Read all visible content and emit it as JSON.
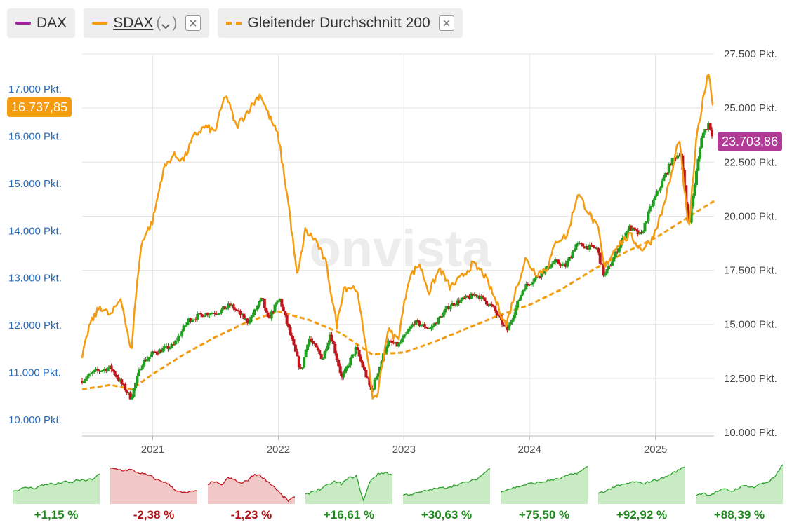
{
  "legend": {
    "dax": {
      "label": "DAX",
      "color": "#a0239c"
    },
    "sdax": {
      "label": "SDAX",
      "paren_open": "(",
      "paren_close": ")",
      "color": "#f39c12"
    },
    "sma": {
      "label": "Gleitender Durchschnitt 200",
      "color": "#f39c12"
    }
  },
  "price_labels": {
    "sdax": "16.737,85",
    "dax": "23.703,86"
  },
  "watermark": "onvista",
  "colors": {
    "up": "#1f9e1f",
    "down": "#c0141c",
    "sdax": "#f39c12",
    "left_axis": "#2a6bb8"
  },
  "chart_data": {
    "type": "line",
    "y_left": {
      "ticks": [
        "10.000 Pkt.",
        "11.000 Pkt.",
        "12.000 Pkt.",
        "13.000 Pkt.",
        "14.000 Pkt.",
        "15.000 Pkt.",
        "16.000 Pkt.",
        "17.000 Pkt."
      ],
      "values": [
        10000,
        11000,
        12000,
        13000,
        14000,
        15000,
        16000,
        17000
      ]
    },
    "y_right": {
      "ticks": [
        "10.000 Pkt.",
        "12.500 Pkt.",
        "15.000 Pkt.",
        "17.500 Pkt.",
        "20.000 Pkt.",
        "22.500 Pkt.",
        "25.000 Pkt.",
        "27.500 Pkt."
      ],
      "values": [
        10000,
        12500,
        15000,
        17500,
        20000,
        22500,
        25000,
        27500
      ]
    },
    "x_ticks": [
      "2021",
      "2022",
      "2023",
      "2024",
      "2025"
    ],
    "x_tick_dates": [
      "2021-01-01",
      "2022-01-01",
      "2023-01-01",
      "2024-01-01",
      "2025-01-01"
    ],
    "x_range": [
      "2020-06-10",
      "2025-06-20"
    ],
    "grid": true,
    "series": [
      {
        "name": "SDAX",
        "axis": "left",
        "style": "line",
        "points": [
          [
            "2020-06-10",
            11300
          ],
          [
            "2020-07-01",
            12000
          ],
          [
            "2020-08-01",
            12400
          ],
          [
            "2020-09-01",
            12200
          ],
          [
            "2020-10-01",
            12600
          ],
          [
            "2020-10-30",
            11400
          ],
          [
            "2020-11-15",
            12800
          ],
          [
            "2020-12-01",
            13800
          ],
          [
            "2021-01-01",
            14200
          ],
          [
            "2021-02-01",
            15300
          ],
          [
            "2021-03-01",
            15600
          ],
          [
            "2021-04-01",
            15500
          ],
          [
            "2021-05-01",
            16000
          ],
          [
            "2021-06-01",
            16200
          ],
          [
            "2021-07-01",
            16100
          ],
          [
            "2021-08-01",
            16900
          ],
          [
            "2021-09-01",
            16200
          ],
          [
            "2021-10-01",
            16500
          ],
          [
            "2021-11-10",
            16900
          ],
          [
            "2021-12-01",
            16500
          ],
          [
            "2022-01-01",
            16000
          ],
          [
            "2022-02-01",
            14500
          ],
          [
            "2022-02-25",
            13000
          ],
          [
            "2022-03-20",
            14000
          ],
          [
            "2022-04-20",
            13800
          ],
          [
            "2022-05-20",
            13300
          ],
          [
            "2022-06-20",
            12000
          ],
          [
            "2022-07-10",
            12800
          ],
          [
            "2022-08-15",
            12800
          ],
          [
            "2022-09-15",
            11500
          ],
          [
            "2022-09-30",
            10500
          ],
          [
            "2022-10-15",
            10500
          ],
          [
            "2022-11-15",
            11900
          ],
          [
            "2022-12-15",
            11700
          ],
          [
            "2023-01-15",
            13000
          ],
          [
            "2023-02-15",
            13300
          ],
          [
            "2023-03-15",
            12700
          ],
          [
            "2023-04-15",
            13200
          ],
          [
            "2023-05-15",
            12800
          ],
          [
            "2023-06-15",
            13000
          ],
          [
            "2023-07-20",
            13300
          ],
          [
            "2023-08-20",
            13100
          ],
          [
            "2023-09-20",
            12600
          ],
          [
            "2023-10-25",
            12000
          ],
          [
            "2023-11-20",
            12700
          ],
          [
            "2023-12-20",
            13400
          ],
          [
            "2024-01-20",
            13100
          ],
          [
            "2024-02-20",
            13200
          ],
          [
            "2024-03-20",
            13800
          ],
          [
            "2024-04-20",
            13900
          ],
          [
            "2024-05-20",
            14800
          ],
          [
            "2024-06-20",
            14400
          ],
          [
            "2024-07-20",
            14000
          ],
          [
            "2024-08-05",
            13200
          ],
          [
            "2024-09-10",
            13700
          ],
          [
            "2024-10-20",
            13900
          ],
          [
            "2024-11-20",
            13600
          ],
          [
            "2024-12-20",
            13800
          ],
          [
            "2025-01-20",
            14400
          ],
          [
            "2025-02-20",
            15300
          ],
          [
            "2025-03-10",
            16000
          ],
          [
            "2025-04-07",
            14000
          ],
          [
            "2025-05-01",
            16000
          ],
          [
            "2025-06-03",
            17400
          ],
          [
            "2025-06-16",
            16737.85
          ]
        ]
      },
      {
        "name": "DAX",
        "axis": "right",
        "style": "candles",
        "points": [
          [
            "2020-06-10",
            12400
          ],
          [
            "2020-07-15",
            12800
          ],
          [
            "2020-09-01",
            13000
          ],
          [
            "2020-10-30",
            11600
          ],
          [
            "2020-11-30",
            13200
          ],
          [
            "2021-01-05",
            13700
          ],
          [
            "2021-03-01",
            14000
          ],
          [
            "2021-04-15",
            15200
          ],
          [
            "2021-06-01",
            15500
          ],
          [
            "2021-07-15",
            15600
          ],
          [
            "2021-08-15",
            15900
          ],
          [
            "2021-10-05",
            15100
          ],
          [
            "2021-11-15",
            16200
          ],
          [
            "2021-12-01",
            15200
          ],
          [
            "2022-01-05",
            16200
          ],
          [
            "2022-03-08",
            12800
          ],
          [
            "2022-03-30",
            14400
          ],
          [
            "2022-05-10",
            13400
          ],
          [
            "2022-06-01",
            14600
          ],
          [
            "2022-07-05",
            12500
          ],
          [
            "2022-08-15",
            13900
          ],
          [
            "2022-09-29",
            11900
          ],
          [
            "2022-11-15",
            14200
          ],
          [
            "2022-12-15",
            14000
          ],
          [
            "2023-01-31",
            15100
          ],
          [
            "2023-03-20",
            14800
          ],
          [
            "2023-05-15",
            15900
          ],
          [
            "2023-07-31",
            16400
          ],
          [
            "2023-09-15",
            15800
          ],
          [
            "2023-10-27",
            14700
          ],
          [
            "2023-12-15",
            16700
          ],
          [
            "2024-03-15",
            17900
          ],
          [
            "2024-04-15",
            17700
          ],
          [
            "2024-05-15",
            18700
          ],
          [
            "2024-07-15",
            18500
          ],
          [
            "2024-08-05",
            17200
          ],
          [
            "2024-10-15",
            19500
          ],
          [
            "2024-11-20",
            19100
          ],
          [
            "2024-12-15",
            20300
          ],
          [
            "2025-02-15",
            22500
          ],
          [
            "2025-03-15",
            23000
          ],
          [
            "2025-04-07",
            19500
          ],
          [
            "2025-05-15",
            23700
          ],
          [
            "2025-06-05",
            24300
          ],
          [
            "2025-06-16",
            23703.86
          ]
        ]
      },
      {
        "name": "Gleitender Durchschnitt 200",
        "axis": "right",
        "style": "dashed",
        "points": [
          [
            "2020-06-10",
            12000
          ],
          [
            "2020-09-01",
            12200
          ],
          [
            "2020-11-01",
            12000
          ],
          [
            "2021-01-01",
            12700
          ],
          [
            "2021-04-01",
            13600
          ],
          [
            "2021-07-01",
            14400
          ],
          [
            "2021-10-01",
            15100
          ],
          [
            "2022-01-01",
            15600
          ],
          [
            "2022-04-01",
            15200
          ],
          [
            "2022-07-01",
            14600
          ],
          [
            "2022-10-01",
            13600
          ],
          [
            "2023-01-01",
            13700
          ],
          [
            "2023-04-01",
            14200
          ],
          [
            "2023-07-01",
            14800
          ],
          [
            "2023-10-01",
            15400
          ],
          [
            "2024-01-01",
            15900
          ],
          [
            "2024-04-01",
            16600
          ],
          [
            "2024-07-01",
            17500
          ],
          [
            "2024-10-01",
            18300
          ],
          [
            "2025-01-01",
            19000
          ],
          [
            "2025-04-01",
            19900
          ],
          [
            "2025-06-20",
            20700
          ]
        ]
      }
    ],
    "performance": [
      {
        "label": "+1,15 %",
        "positive": true,
        "values": [
          0.3,
          0.35,
          0.4,
          0.38,
          0.45,
          0.5,
          0.48,
          0.55,
          0.52,
          0.6,
          0.58,
          0.62,
          0.75
        ]
      },
      {
        "label": "-2,38 %",
        "positive": false,
        "values": [
          0.9,
          0.88,
          0.85,
          0.87,
          0.8,
          0.75,
          0.7,
          0.6,
          0.55,
          0.45,
          0.3,
          0.25,
          0.28,
          0.3
        ]
      },
      {
        "label": "-1,23 %",
        "positive": false,
        "values": [
          0.5,
          0.55,
          0.45,
          0.65,
          0.6,
          0.5,
          0.6,
          0.75,
          0.7,
          0.55,
          0.4,
          0.2,
          0.05,
          0.15
        ]
      },
      {
        "label": "+16,61 %",
        "positive": true,
        "values": [
          0.2,
          0.3,
          0.35,
          0.45,
          0.55,
          0.5,
          0.65,
          0.7,
          0.05,
          0.6,
          0.75,
          0.8,
          0.72
        ]
      },
      {
        "label": "+30,63 %",
        "positive": true,
        "values": [
          0.2,
          0.22,
          0.25,
          0.3,
          0.35,
          0.38,
          0.4,
          0.45,
          0.5,
          0.55,
          0.6,
          0.75,
          0.9
        ]
      },
      {
        "label": "+75,50 %",
        "positive": true,
        "values": [
          0.3,
          0.35,
          0.4,
          0.45,
          0.5,
          0.52,
          0.55,
          0.6,
          0.62,
          0.7,
          0.75,
          0.82,
          0.95
        ]
      },
      {
        "label": "+92,92 %",
        "positive": true,
        "values": [
          0.25,
          0.3,
          0.4,
          0.45,
          0.5,
          0.55,
          0.5,
          0.55,
          0.6,
          0.65,
          0.75,
          0.85,
          0.95
        ]
      },
      {
        "label": "+88,39 %",
        "positive": true,
        "values": [
          0.2,
          0.25,
          0.2,
          0.3,
          0.35,
          0.3,
          0.4,
          0.45,
          0.4,
          0.5,
          0.55,
          0.7,
          1.0
        ]
      }
    ]
  }
}
